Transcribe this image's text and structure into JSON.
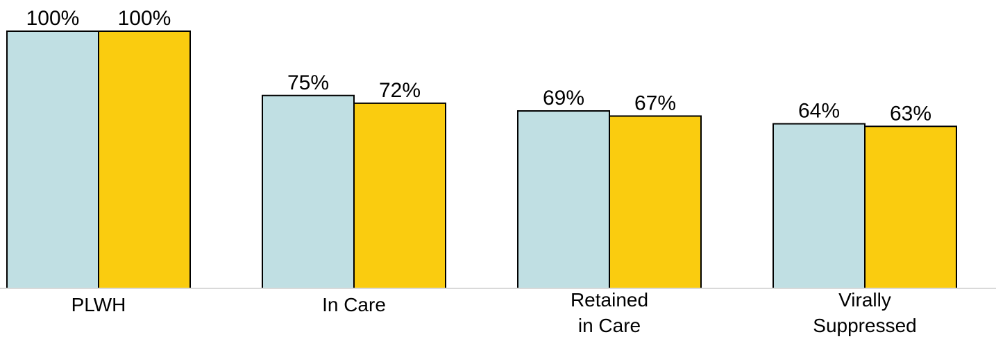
{
  "chart_data": {
    "type": "bar",
    "title": "",
    "xlabel": "",
    "ylabel": "",
    "categories": [
      [
        "PLWH"
      ],
      [
        "In Care"
      ],
      [
        "Retained",
        "in Care"
      ],
      [
        "Virally",
        "Suppressed"
      ]
    ],
    "series": [
      {
        "color": "#c0dfe3",
        "values": [
          100,
          75,
          69,
          64
        ],
        "labels": [
          "100%",
          "75%",
          "69%",
          "64%"
        ]
      },
      {
        "color": "#facc0f",
        "values": [
          100,
          72,
          67,
          63
        ],
        "labels": [
          "100%",
          "72%",
          "67%",
          "63%"
        ]
      }
    ],
    "ylim": [
      0,
      100
    ],
    "grid": false,
    "legend": "none"
  }
}
